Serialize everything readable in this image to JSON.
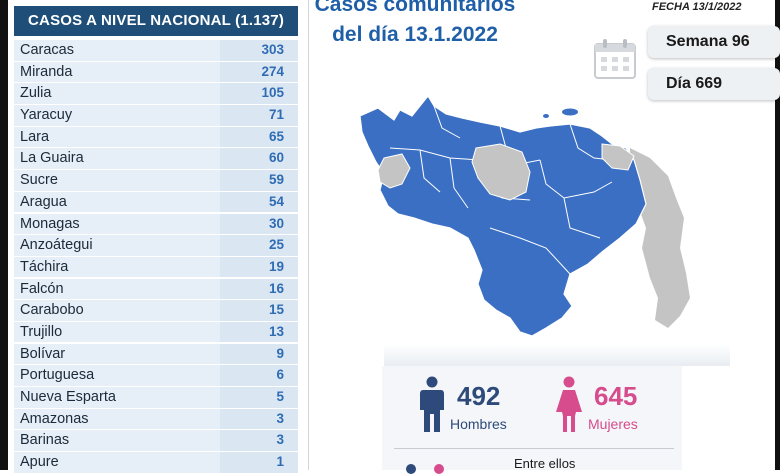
{
  "table": {
    "header": "CASOS A NIVEL NACIONAL  (1.137)",
    "rows": [
      {
        "name": "Caracas",
        "value": "303"
      },
      {
        "name": "Miranda",
        "value": "274"
      },
      {
        "name": "Zulia",
        "value": "105"
      },
      {
        "name": "Yaracuy",
        "value": "71"
      },
      {
        "name": "Lara",
        "value": "65"
      },
      {
        "name": "La Guaira",
        "value": "60"
      },
      {
        "name": "Sucre",
        "value": "59"
      },
      {
        "name": "Aragua",
        "value": "54"
      },
      {
        "name": "Monagas",
        "value": "30"
      },
      {
        "name": "Anzoátegui",
        "value": "25"
      },
      {
        "name": "Táchira",
        "value": "19"
      },
      {
        "name": "Falcón",
        "value": "16"
      },
      {
        "name": "Carabobo",
        "value": "15"
      },
      {
        "name": "Trujillo",
        "value": "13"
      },
      {
        "name": "Bolívar",
        "value": "9"
      },
      {
        "name": "Portuguesa",
        "value": "6"
      },
      {
        "name": "Nueva Esparta",
        "value": "5"
      },
      {
        "name": "Amazonas",
        "value": "3"
      },
      {
        "name": "Barinas",
        "value": "3"
      },
      {
        "name": "Apure",
        "value": "1"
      }
    ]
  },
  "title": {
    "line1": "Casos comunitarios",
    "line2": "del día 13.1.2022"
  },
  "fecha": "FECHA 13/1/2022",
  "semana": "Semana 96",
  "dia": "Día 669",
  "stats": {
    "hombres_value": "492",
    "hombres_label": "Hombres",
    "mujeres_value": "645",
    "mujeres_label": "Mujeres",
    "entre_ellos": "Entre ellos"
  },
  "colors": {
    "header_blue": "#1f4e79",
    "value_blue": "#2e6db4",
    "map_blue": "#3a6fc4",
    "map_gray": "#c4c4c4",
    "men": "#2e4a7a",
    "women": "#d64c8c"
  },
  "icons": [
    "calendar-icon",
    "man-icon",
    "woman-icon"
  ]
}
